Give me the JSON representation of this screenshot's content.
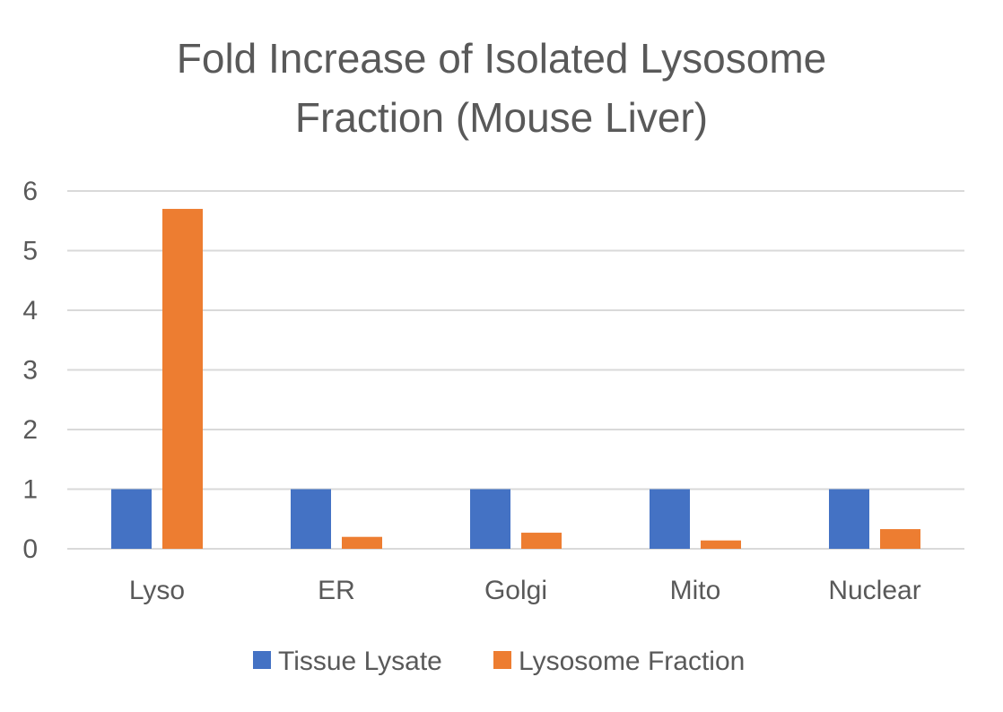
{
  "chart_data": {
    "type": "bar",
    "title_lines": [
      "Fold Increase of Isolated Lysosome",
      "Fraction (Mouse Liver)"
    ],
    "categories": [
      "Lyso",
      "ER",
      "Golgi",
      "Mito",
      "Nuclear"
    ],
    "series": [
      {
        "name": "Tissue Lysate",
        "color": "#4472C4",
        "values": [
          1,
          1,
          1,
          1,
          1
        ]
      },
      {
        "name": "Lysosome Fraction",
        "color": "#ED7D31",
        "values": [
          5.7,
          0.2,
          0.27,
          0.14,
          0.33
        ]
      }
    ],
    "ylim": [
      0,
      6
    ],
    "yticks": [
      "0",
      "1",
      "2",
      "3",
      "4",
      "5",
      "6"
    ],
    "grid": true,
    "legend_position": "bottom"
  }
}
